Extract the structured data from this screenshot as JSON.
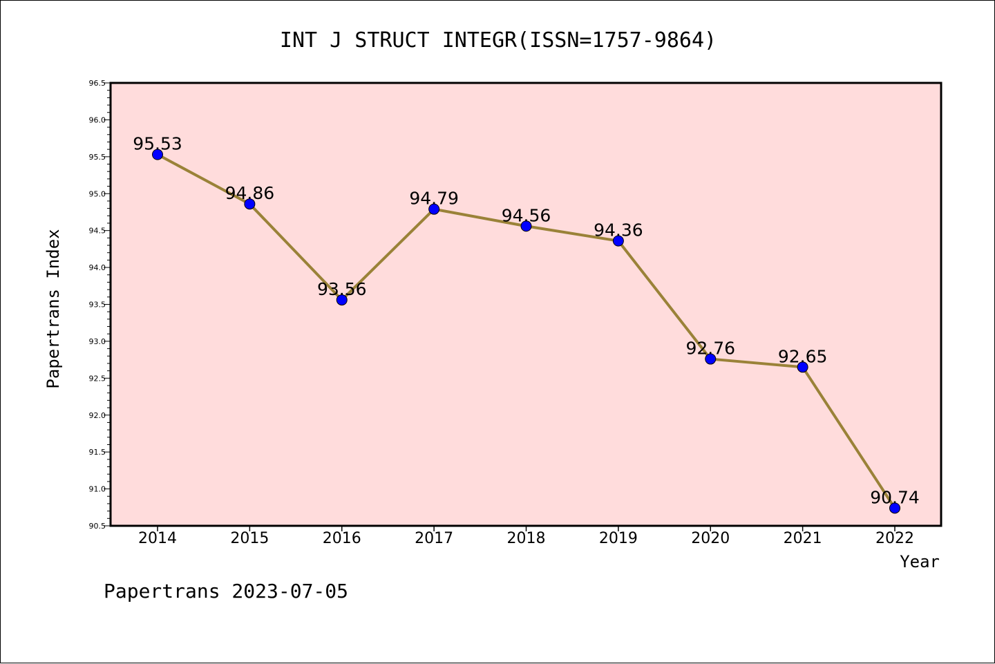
{
  "footer": "Papertrans 2023-07-05",
  "colors": {
    "plot_background": "#ffdcdc",
    "line": "#9a8238",
    "marker": "#0000ff"
  },
  "chart_data": {
    "type": "line",
    "title": "INT J STRUCT INTEGR(ISSN=1757-9864)",
    "xlabel": "Year",
    "ylabel": "Papertrans Index",
    "categories": [
      "2014",
      "2015",
      "2016",
      "2017",
      "2018",
      "2019",
      "2020",
      "2021",
      "2022"
    ],
    "series": [
      {
        "values": [
          95.53,
          94.86,
          93.56,
          94.79,
          94.56,
          94.36,
          92.76,
          92.65,
          90.74
        ],
        "labels": [
          "95.53",
          "94.86",
          "93.56",
          "94.79",
          "94.56",
          "94.36",
          "92.76",
          "92.65",
          "90.74"
        ]
      }
    ],
    "ylim": [
      90.5,
      96.5
    ],
    "yticks": [
      "90.5",
      "91.0",
      "91.5",
      "92.0",
      "92.5",
      "93.0",
      "93.5",
      "94.0",
      "94.5",
      "95.0",
      "95.5",
      "96.0",
      "96.5"
    ],
    "grid": false,
    "legend": "none"
  }
}
